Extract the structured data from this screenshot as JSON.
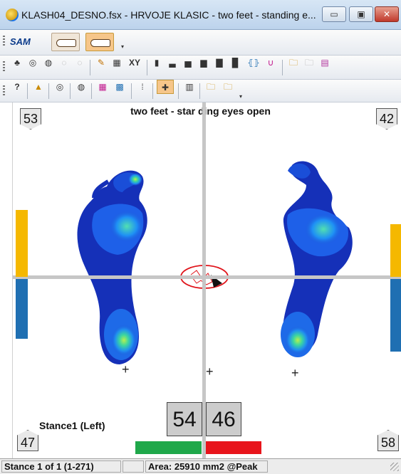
{
  "window": {
    "title": "KLASH04_DESNO.fsx - HRVOJE  KLASIC - two feet - standing e...",
    "minimize_label": "▭",
    "maximize_label": "▣",
    "close_label": "✕"
  },
  "toolbar1": {
    "sam_label": "SAM"
  },
  "toolbar2": {
    "xy_label": "XY"
  },
  "plot": {
    "title": "two feet - star ding eyes open",
    "corner_top_left": "53",
    "corner_top_right": "42",
    "corner_bottom_left": "47",
    "corner_bottom_right": "58",
    "left_percent": "54",
    "right_percent": "46",
    "stance_label": "Stance1 (Left)",
    "colors": {
      "left_bar_top": "#f5b800",
      "left_bar_bottom": "#1f6fb2",
      "right_bar_top": "#f5b800",
      "right_bar_bottom": "#1f6fb2",
      "left_percent_bar": "#1fa84a",
      "right_percent_bar": "#e8141b",
      "cop_ellipse": "#e0141b",
      "axis": "#c6c6c6"
    }
  },
  "status": {
    "stance": "Stance 1 of 1 (1-271)",
    "empty": "",
    "area": "Area: 25910 mm2 @Peak"
  }
}
